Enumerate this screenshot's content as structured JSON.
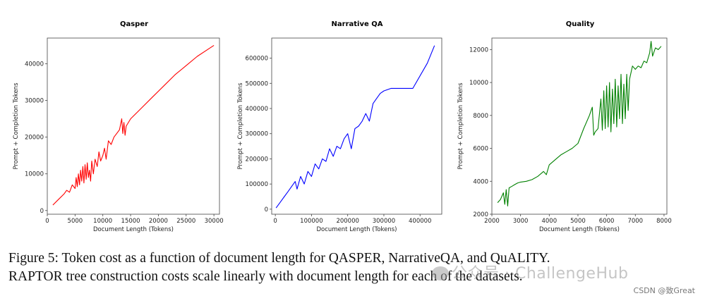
{
  "chart_data": [
    {
      "type": "line",
      "title": "Qasper",
      "xlabel": "Document Length (Tokens)",
      "ylabel": "Prompt + Completion Tokens",
      "xlim": [
        0,
        31000
      ],
      "ylim": [
        -1000,
        47000
      ],
      "xticks": [
        0,
        5000,
        10000,
        15000,
        20000,
        25000,
        30000
      ],
      "yticks": [
        0,
        10000,
        20000,
        30000,
        40000
      ],
      "color": "#ff0000",
      "series": [
        {
          "x": [
            1000,
            2000,
            3000,
            3500,
            4000,
            4500,
            5000,
            5200,
            5400,
            5600,
            5800,
            6000,
            6200,
            6400,
            6600,
            6800,
            7000,
            7200,
            7400,
            7600,
            7800,
            8000,
            8300,
            8600,
            9000,
            9300,
            9600,
            10000,
            10300,
            10600,
            11000,
            11500,
            12000,
            12500,
            13000,
            13400,
            13600,
            13800,
            14000,
            14200,
            15000,
            17000,
            19000,
            21000,
            23000,
            25000,
            27000,
            29000,
            30000
          ],
          "y": [
            1500,
            3000,
            4500,
            5500,
            5000,
            7000,
            6000,
            9000,
            6500,
            10000,
            7000,
            11000,
            8000,
            12000,
            7500,
            12500,
            8500,
            13000,
            9000,
            11000,
            8000,
            13500,
            10000,
            14000,
            12000,
            16000,
            13500,
            15000,
            17000,
            14000,
            19000,
            18000,
            20000,
            21000,
            22000,
            25000,
            21000,
            24000,
            20500,
            23000,
            25000,
            28000,
            31000,
            34000,
            37000,
            39500,
            42000,
            44000,
            45000
          ]
        }
      ]
    },
    {
      "type": "line",
      "title": "Narrative QA",
      "xlabel": "Document Length (Tokens)",
      "ylabel": "Prompt + Completion Tokens",
      "xlim": [
        -10000,
        460000
      ],
      "ylim": [
        -20000,
        680000
      ],
      "xticks": [
        0,
        100000,
        200000,
        300000,
        400000
      ],
      "yticks": [
        0,
        100000,
        200000,
        300000,
        400000,
        500000,
        600000
      ],
      "color": "#0000ff",
      "series": [
        {
          "x": [
            2000,
            15000,
            25000,
            35000,
            45000,
            55000,
            60000,
            70000,
            80000,
            90000,
            100000,
            110000,
            120000,
            130000,
            140000,
            150000,
            160000,
            170000,
            180000,
            190000,
            200000,
            210000,
            220000,
            230000,
            240000,
            250000,
            260000,
            270000,
            280000,
            290000,
            300000,
            320000,
            340000,
            380000,
            420000,
            440000
          ],
          "y": [
            5000,
            30000,
            50000,
            70000,
            90000,
            110000,
            80000,
            130000,
            100000,
            150000,
            130000,
            180000,
            160000,
            200000,
            190000,
            240000,
            210000,
            250000,
            240000,
            280000,
            300000,
            240000,
            320000,
            330000,
            350000,
            380000,
            350000,
            420000,
            440000,
            460000,
            470000,
            480000,
            480000,
            480000,
            580000,
            650000
          ]
        }
      ]
    },
    {
      "type": "line",
      "title": "Quality",
      "xlabel": "Document Length (Tokens)",
      "ylabel": "Prompt + Completion Tokens",
      "xlim": [
        2000,
        8100
      ],
      "ylim": [
        2000,
        12700
      ],
      "xticks": [
        2000,
        3000,
        4000,
        5000,
        6000,
        7000,
        8000
      ],
      "yticks": [
        2000,
        4000,
        6000,
        8000,
        10000,
        12000
      ],
      "color": "#008000",
      "series": [
        {
          "x": [
            2200,
            2300,
            2400,
            2450,
            2500,
            2550,
            2600,
            2700,
            2800,
            2900,
            3000,
            3200,
            3400,
            3600,
            3800,
            3900,
            4000,
            4200,
            4400,
            4600,
            4800,
            5000,
            5200,
            5400,
            5500,
            5550,
            5600,
            5700,
            5800,
            5850,
            5900,
            5950,
            6000,
            6050,
            6100,
            6150,
            6200,
            6250,
            6300,
            6350,
            6400,
            6450,
            6500,
            6550,
            6600,
            6650,
            6700,
            6750,
            6800,
            6900,
            7000,
            7100,
            7200,
            7300,
            7400,
            7500,
            7550,
            7600,
            7700,
            7800,
            7900
          ],
          "y": [
            2700,
            2900,
            3300,
            2600,
            3500,
            2500,
            3600,
            3700,
            3800,
            3900,
            3950,
            4000,
            4100,
            4300,
            4600,
            4400,
            5000,
            5300,
            5600,
            5800,
            6000,
            6300,
            7200,
            8000,
            8500,
            6800,
            7000,
            7200,
            9000,
            7100,
            9500,
            7200,
            9800,
            7300,
            10000,
            7000,
            9600,
            7500,
            10200,
            7300,
            9800,
            7800,
            10500,
            7500,
            9900,
            7800,
            10500,
            8300,
            10200,
            11000,
            10800,
            11000,
            10900,
            11300,
            11200,
            11800,
            12500,
            11600,
            12100,
            12000,
            12200
          ]
        }
      ]
    }
  ],
  "caption": {
    "line1": "Figure 5: Token cost as a function of document length for QASPER, NarrativeQA, and QuALITY.",
    "line2": "RAPTOR tree construction costs scale linearly with document length for each of the datasets."
  },
  "watermark": "公众号 · ChallengeHub",
  "credit": "CSDN @致Great"
}
